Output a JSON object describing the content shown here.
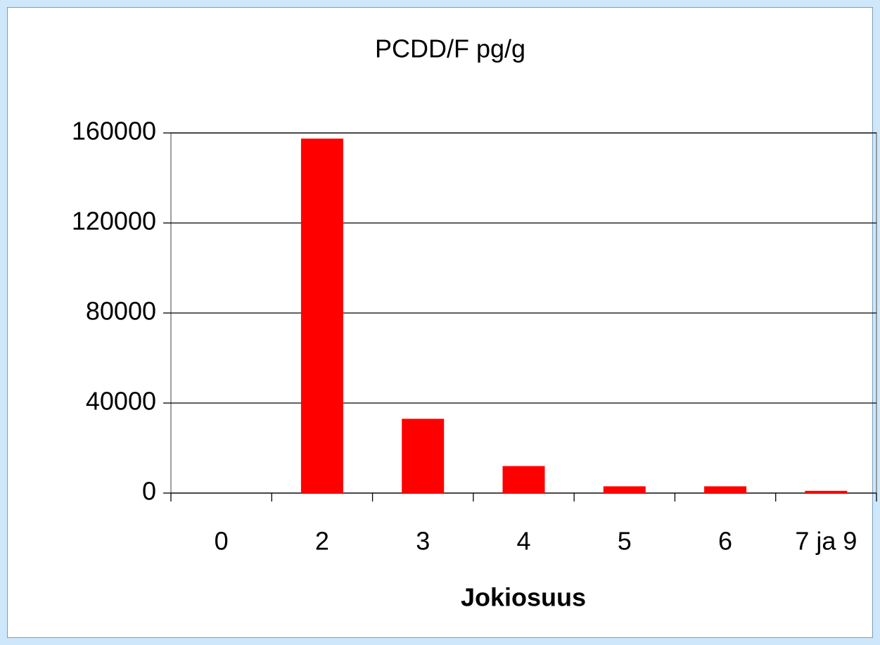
{
  "chart_data": {
    "type": "bar",
    "title": "PCDD/F pg/g",
    "x_label": "Jokiosuus",
    "categories": [
      "0",
      "2",
      "3",
      "4",
      "5",
      "6",
      "7 ja 9"
    ],
    "values": [
      0,
      157500,
      33000,
      12000,
      3000,
      3000,
      1000
    ],
    "color": "#ff0000",
    "ylim": [
      0,
      160000
    ],
    "yticks": [
      0,
      40000,
      80000,
      120000,
      160000
    ],
    "grid": true
  }
}
